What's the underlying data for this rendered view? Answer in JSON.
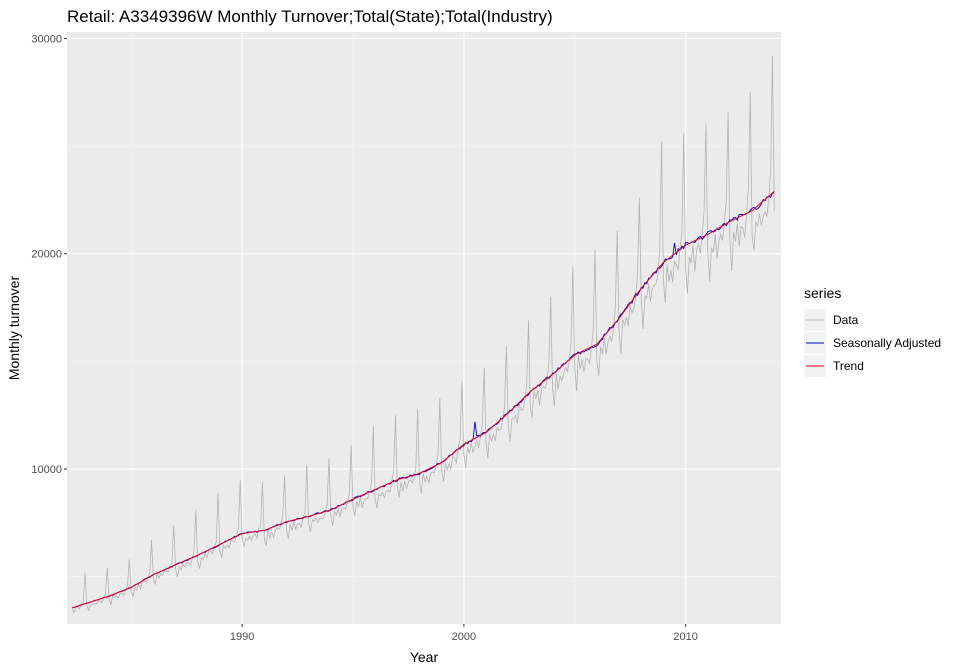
{
  "chart_data": {
    "type": "line",
    "title": "Retail:  A3349396W Monthly Turnover;Total(State);Total(Industry)",
    "xlabel": "Year",
    "ylabel": "Monthly turnover",
    "xlim": [
      1982.1,
      2014.3
    ],
    "ylim": [
      2800,
      30300
    ],
    "x_ticks": [
      1990,
      2000,
      2010
    ],
    "x_tick_labels": [
      "1990",
      "2000",
      "2010"
    ],
    "y_ticks": [
      10000,
      20000,
      30000
    ],
    "y_tick_labels": [
      "10000",
      "20000",
      "30000"
    ],
    "x_start": 1982.33,
    "x_step_months": 1,
    "grid": true,
    "legend": {
      "title": "series",
      "position": "right",
      "entries": [
        {
          "label": "Data",
          "color": "#b3b3b3"
        },
        {
          "label": "Seasonally Adjusted",
          "color": "#0000cc"
        },
        {
          "label": "Trend",
          "color": "#e8001c"
        }
      ]
    },
    "trend_anchors": [
      [
        1982.33,
        3550
      ],
      [
        1984,
        4100
      ],
      [
        1985,
        4500
      ],
      [
        1986,
        5100
      ],
      [
        1987,
        5550
      ],
      [
        1988,
        6000
      ],
      [
        1989,
        6500
      ],
      [
        1990,
        7000
      ],
      [
        1991,
        7150
      ],
      [
        1992,
        7550
      ],
      [
        1993,
        7800
      ],
      [
        1994,
        8100
      ],
      [
        1995,
        8600
      ],
      [
        1996,
        9050
      ],
      [
        1997,
        9500
      ],
      [
        1998,
        9800
      ],
      [
        1999,
        10300
      ],
      [
        2000,
        11150
      ],
      [
        2001,
        11700
      ],
      [
        2002,
        12600
      ],
      [
        2003,
        13600
      ],
      [
        2004,
        14400
      ],
      [
        2005,
        15300
      ],
      [
        2006,
        15800
      ],
      [
        2007,
        17000
      ],
      [
        2008,
        18400
      ],
      [
        2009,
        19600
      ],
      [
        2010,
        20400
      ],
      [
        2011,
        20900
      ],
      [
        2012,
        21500
      ],
      [
        2013,
        22000
      ],
      [
        2014,
        22900
      ]
    ],
    "seasonal_factors": [
      0.96,
      0.9,
      0.98,
      0.95,
      0.98,
      0.94,
      0.98,
      0.98,
      0.96,
      1.0,
      1.04,
      1.28
    ],
    "december_peaks": [
      [
        1982.92,
        5200
      ],
      [
        1983.92,
        5400
      ],
      [
        1984.92,
        5800
      ],
      [
        1985.92,
        6700
      ],
      [
        1986.92,
        7400
      ],
      [
        1987.92,
        8100
      ],
      [
        1988.92,
        8900
      ],
      [
        1989.92,
        9500
      ],
      [
        1990.92,
        9400
      ],
      [
        1991.92,
        9700
      ],
      [
        1992.92,
        10200
      ],
      [
        1993.92,
        10500
      ],
      [
        1994.92,
        11100
      ],
      [
        1995.92,
        12000
      ],
      [
        1996.92,
        12500
      ],
      [
        1997.92,
        12800
      ],
      [
        1998.92,
        13300
      ],
      [
        1999.92,
        14100
      ],
      [
        2000.92,
        14700
      ],
      [
        2001.92,
        15700
      ],
      [
        2002.92,
        16900
      ],
      [
        2003.92,
        18000
      ],
      [
        2004.92,
        19400
      ],
      [
        2005.92,
        20200
      ],
      [
        2006.92,
        21100
      ],
      [
        2007.92,
        22600
      ],
      [
        2008.92,
        25200
      ],
      [
        2009.92,
        25600
      ],
      [
        2010.92,
        26000
      ],
      [
        2011.92,
        26600
      ],
      [
        2012.92,
        27500
      ],
      [
        2013.92,
        29200
      ]
    ],
    "sa_events": [
      [
        2000.5,
        12200
      ],
      [
        2009.5,
        20500
      ]
    ]
  }
}
